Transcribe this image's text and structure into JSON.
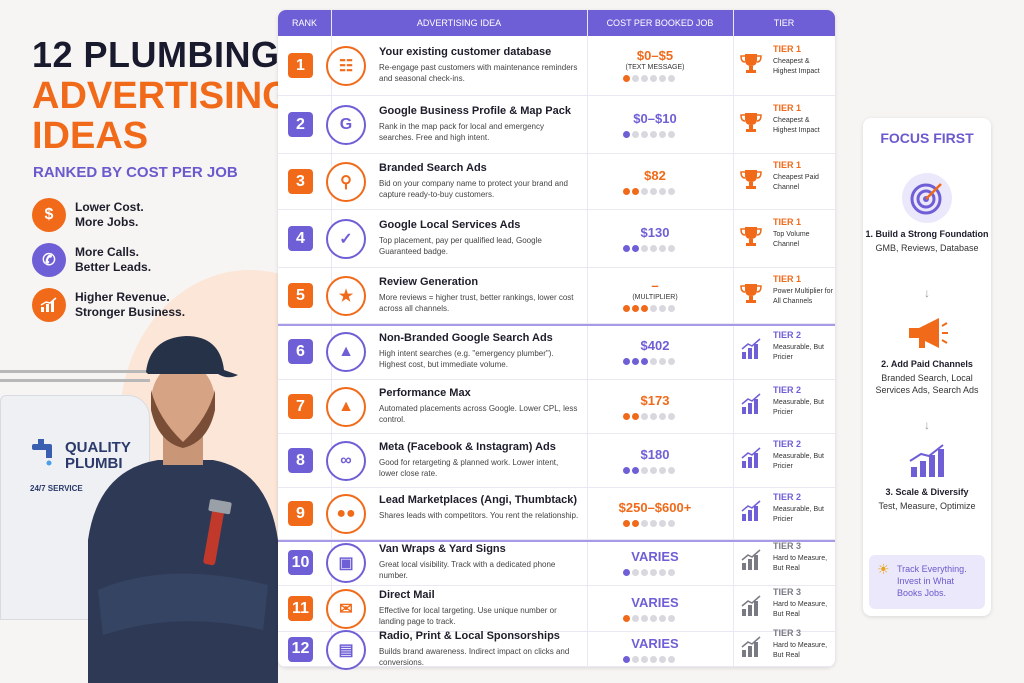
{
  "header": {
    "title_line1": "12 PLUMBING",
    "title_line2": "ADVERTISING",
    "title_line3": "IDEAS",
    "subtitle": "RANKED BY COST PER JOB"
  },
  "benefits": [
    {
      "icon": "dollar-icon",
      "line1": "Lower Cost.",
      "line2": "More Jobs.",
      "color": "#f06a1a"
    },
    {
      "icon": "phone-icon",
      "line1": "More Calls.",
      "line2": "Better Leads.",
      "color": "#6f5fd6"
    },
    {
      "icon": "growth-chart-icon",
      "line1": "Higher Revenue.",
      "line2": "Stronger Business.",
      "color": "#f06a1a"
    }
  ],
  "van": {
    "brand_line1": "QUALITY",
    "brand_line2": "PLUMBI",
    "service": "24/7 SERVICE"
  },
  "table": {
    "headers": {
      "rank": "RANK",
      "idea": "ADVERTISING IDEA",
      "cost": "COST PER BOOKED JOB",
      "tier": "TIER"
    },
    "rows": [
      {
        "rank": "1",
        "title": "Your existing customer database",
        "desc": "Re-engage past customers with maintenance reminders and seasonal check-ins.",
        "cost": "$0–$5",
        "note": "(TEXT MESSAGE)",
        "dots": 1,
        "tier": "TIER 1",
        "tier_desc": "Cheapest & Highest Impact",
        "icon": "contacts-icon",
        "tier_icon": "trophy-icon",
        "accent": "#f06a1a"
      },
      {
        "rank": "2",
        "title": "Google Business Profile & Map Pack",
        "desc": "Rank in the map pack for local and emergency searches. Free and high intent.",
        "cost": "$0–$10",
        "note": "",
        "dots": 1,
        "tier": "TIER 1",
        "tier_desc": "Cheapest & Highest Impact",
        "icon": "google-business-icon",
        "tier_icon": "trophy-icon",
        "accent": "#6f5fd6"
      },
      {
        "rank": "3",
        "title": "Branded Search Ads",
        "desc": "Bid on your company name to protect your brand and capture ready-to-buy customers.",
        "cost": "$82",
        "note": "",
        "dots": 2,
        "tier": "TIER 1",
        "tier_desc": "Cheapest Paid Channel",
        "icon": "search-icon",
        "tier_icon": "trophy-icon",
        "accent": "#f06a1a"
      },
      {
        "rank": "4",
        "title": "Google Local Services Ads",
        "desc": "Top placement, pay per qualified lead, Google Guaranteed badge.",
        "cost": "$130",
        "note": "",
        "dots": 2,
        "tier": "TIER 1",
        "tier_desc": "Top Volume Channel",
        "icon": "shield-check-icon",
        "tier_icon": "trophy-icon",
        "accent": "#6f5fd6"
      },
      {
        "rank": "5",
        "title": "Review Generation",
        "desc": "More reviews = higher trust, better rankings, lower cost across all channels.",
        "cost": "–",
        "note": "(MULTIPLIER)",
        "dots": 3,
        "tier": "TIER 1",
        "tier_desc": "Power Multiplier for All Channels",
        "icon": "star-icon",
        "tier_icon": "trophy-icon",
        "accent": "#f06a1a"
      },
      {
        "rank": "6",
        "title": "Non-Branded Google Search Ads",
        "desc": "High intent searches (e.g. \"emergency plumber\"). Highest cost, but immediate volume.",
        "cost": "$402",
        "note": "",
        "dots": 3,
        "tier": "TIER 2",
        "tier_desc": "Measurable, But Pricier",
        "icon": "google-ads-icon",
        "tier_icon": "bar-chart-icon",
        "accent": "#6f5fd6"
      },
      {
        "rank": "7",
        "title": "Performance Max",
        "desc": "Automated placements across Google. Lower CPL, less control.",
        "cost": "$173",
        "note": "",
        "dots": 2,
        "tier": "TIER 2",
        "tier_desc": "Measurable, But Pricier",
        "icon": "google-ads-icon",
        "tier_icon": "bar-chart-icon",
        "accent": "#f06a1a"
      },
      {
        "rank": "8",
        "title": "Meta (Facebook & Instagram) Ads",
        "desc": "Good for retargeting & planned work. Lower intent, lower close rate.",
        "cost": "$180",
        "note": "",
        "dots": 2,
        "tier": "TIER 2",
        "tier_desc": "Measurable, But Pricier",
        "icon": "meta-icon",
        "tier_icon": "bar-chart-icon",
        "accent": "#6f5fd6"
      },
      {
        "rank": "9",
        "title": "Lead Marketplaces (Angi, Thumbtack)",
        "desc": "Shares leads with competitors. You rent the relationship.",
        "cost": "$250–$600+",
        "note": "",
        "dots": 2,
        "tier": "TIER 2",
        "tier_desc": "Measurable, But Pricier",
        "icon": "people-icon",
        "tier_icon": "bar-chart-icon",
        "accent": "#f06a1a"
      },
      {
        "rank": "10",
        "title": "Van Wraps & Yard Signs",
        "desc": "Great local visibility. Track with a dedicated phone number.",
        "cost": "VARIES",
        "note": "",
        "dots": 1,
        "tier": "TIER 3",
        "tier_desc": "Hard to Measure, But Real",
        "icon": "van-icon",
        "tier_icon": "bar-chart-icon",
        "accent": "#6f5fd6"
      },
      {
        "rank": "11",
        "title": "Direct Mail",
        "desc": "Effective for local targeting. Use unique number or landing page to track.",
        "cost": "VARIES",
        "note": "",
        "dots": 1,
        "tier": "TIER 3",
        "tier_desc": "Hard to Measure, But Real",
        "icon": "mail-icon",
        "tier_icon": "bar-chart-icon",
        "accent": "#f06a1a"
      },
      {
        "rank": "12",
        "title": "Radio, Print & Local Sponsorships",
        "desc": "Builds brand awareness. Indirect impact on clicks and conversions.",
        "cost": "VARIES",
        "note": "",
        "dots": 1,
        "tier": "TIER 3",
        "tier_desc": "Hard to Measure, But Real",
        "icon": "radio-icon",
        "tier_icon": "bar-chart-icon",
        "accent": "#6f5fd6"
      }
    ]
  },
  "focus": {
    "title": "FOCUS FIRST",
    "steps": [
      {
        "heading": "1. Build a Strong Foundation",
        "desc": "GMB, Reviews, Database",
        "icon": "target-icon"
      },
      {
        "heading": "2. Add Paid Channels",
        "desc": "Branded Search, Local Services Ads, Search Ads",
        "icon": "megaphone-icon"
      },
      {
        "heading": "3. Scale & Diversify",
        "desc": "Test, Measure, Optimize",
        "icon": "growth-chart-icon"
      }
    ],
    "track": "Track Everything. Invest in What Books Jobs."
  },
  "colors": {
    "orange": "#f06a1a",
    "purple": "#6f5fd6",
    "tier1": "#f06a1a",
    "tier2": "#6f5fd6",
    "tier3": "#7a7a85"
  }
}
